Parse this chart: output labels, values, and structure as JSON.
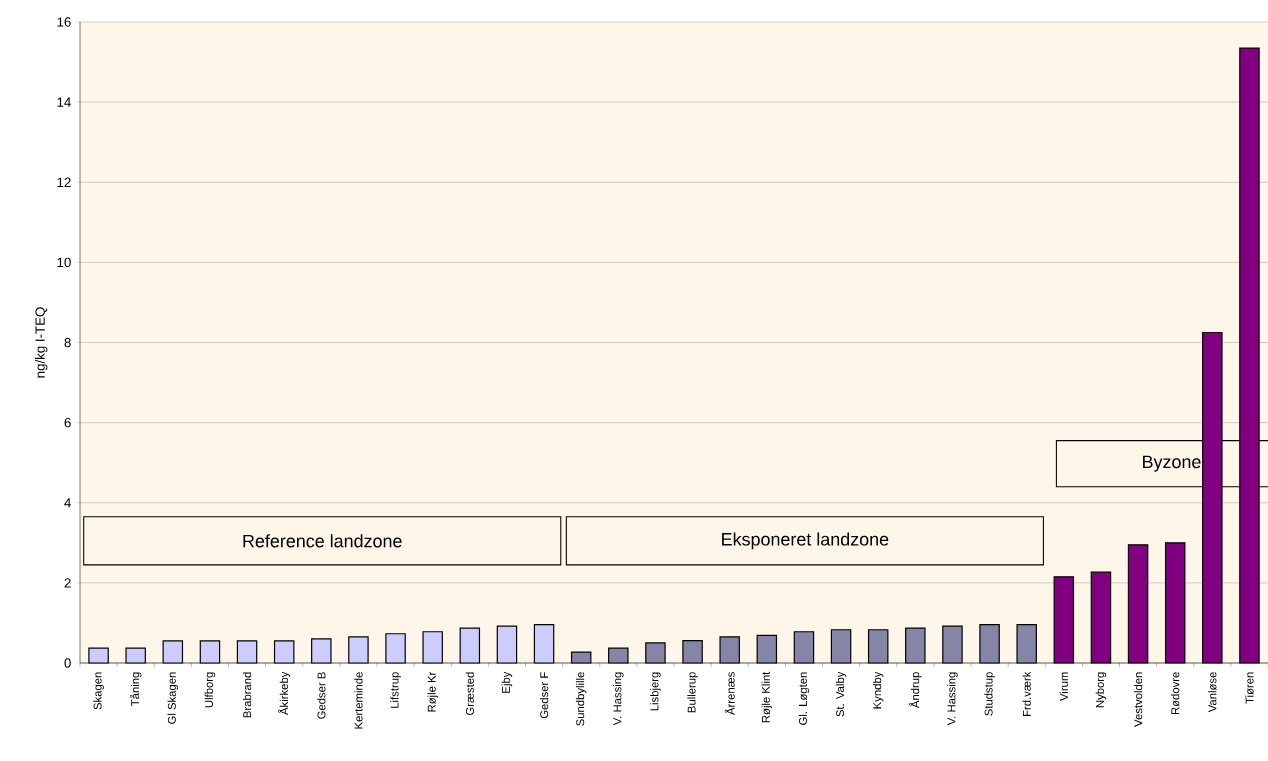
{
  "chart_data": {
    "type": "bar",
    "ylabel": "ng/kg I-TEQ",
    "categories": [
      "Skagen",
      "Tåning",
      "Gl Skagen",
      "Ulfborg",
      "Brabrand",
      "Åkirkeby",
      "Gedser B",
      "Kerteminde",
      "Lifstrup",
      "Røjle Kr",
      "Græsted",
      "Ejby",
      "Gedser F",
      "Sundbylille",
      "V. Hassing",
      "Lisbjerg",
      "Bullerup",
      "Årrenæs",
      "Røjle Klint",
      "Gl. Løgten",
      "St. Valby",
      "Kyndby",
      "Åndrup",
      "V. Hassing",
      "Studstup",
      "Frd.værk",
      "Virum",
      "Nyborg",
      "Vestvolden",
      "Rødovre",
      "Vanløse",
      "Tiøren"
    ],
    "values": [
      0.37,
      0.37,
      0.55,
      0.55,
      0.55,
      0.55,
      0.6,
      0.65,
      0.73,
      0.78,
      0.87,
      0.92,
      0.96,
      0.27,
      0.37,
      0.5,
      0.56,
      0.65,
      0.69,
      0.78,
      0.83,
      0.83,
      0.87,
      0.92,
      0.96,
      0.96,
      2.15,
      2.27,
      2.95,
      3.0,
      8.25,
      15.35
    ],
    "colors": [
      "#ccccff",
      "#ccccff",
      "#ccccff",
      "#ccccff",
      "#ccccff",
      "#ccccff",
      "#ccccff",
      "#ccccff",
      "#ccccff",
      "#ccccff",
      "#ccccff",
      "#ccccff",
      "#ccccff",
      "#8585a8",
      "#8585a8",
      "#8585a8",
      "#8585a8",
      "#8585a8",
      "#8585a8",
      "#8585a8",
      "#8585a8",
      "#8585a8",
      "#8585a8",
      "#8585a8",
      "#8585a8",
      "#8585a8",
      "#800080",
      "#800080",
      "#800080",
      "#800080",
      "#800080",
      "#800080"
    ],
    "ylim": [
      0,
      16
    ],
    "yticks": [
      0,
      2,
      4,
      6,
      8,
      10,
      12,
      14,
      16
    ],
    "grid": "y",
    "annotations": [
      "Reference landzone",
      "Eksponeret landzone",
      "Byzone"
    ]
  }
}
